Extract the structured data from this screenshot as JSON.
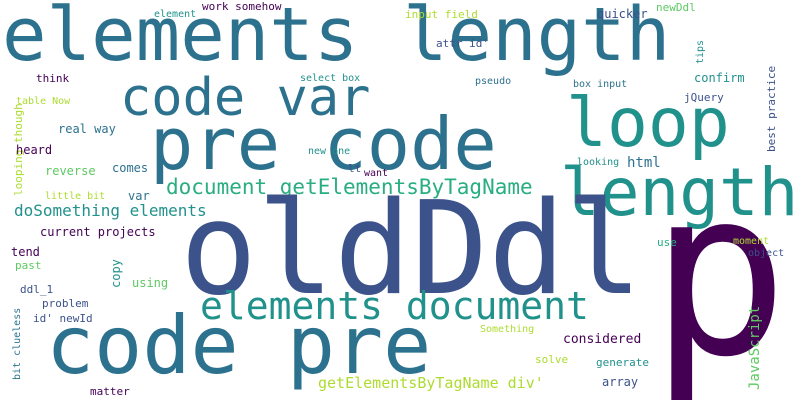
{
  "colors": {
    "background": "#ffffff",
    "palette": [
      "#440154",
      "#3b528b",
      "#2c728e",
      "#21918c",
      "#28ae80",
      "#5ec962",
      "#addc30",
      "#fde725"
    ]
  },
  "words": [
    {
      "text": "elements length",
      "color": "#2c728e",
      "orientation": "horizontal"
    },
    {
      "text": "code var",
      "color": "#2c728e",
      "orientation": "horizontal"
    },
    {
      "text": "pre code",
      "color": "#2c728e",
      "orientation": "horizontal"
    },
    {
      "text": "loop",
      "color": "#21918c",
      "orientation": "horizontal"
    },
    {
      "text": "length",
      "color": "#21918c",
      "orientation": "horizontal"
    },
    {
      "text": "document getElementsByTagName",
      "color": "#28ae80",
      "orientation": "horizontal"
    },
    {
      "text": "doSomething elements",
      "color": "#21918c",
      "orientation": "horizontal"
    },
    {
      "text": "oldDdl",
      "color": "#3b528b",
      "orientation": "horizontal"
    },
    {
      "text": "p",
      "color": "#440154",
      "orientation": "horizontal"
    },
    {
      "text": "elements document",
      "color": "#21918c",
      "orientation": "horizontal"
    },
    {
      "text": "code pre",
      "color": "#2c728e",
      "orientation": "horizontal"
    },
    {
      "text": "getElementsByTagName div'",
      "color": "#addc30",
      "orientation": "horizontal"
    },
    {
      "text": "element",
      "color": "#21918c",
      "orientation": "horizontal"
    },
    {
      "text": "work somehow",
      "color": "#440154",
      "orientation": "horizontal"
    },
    {
      "text": "input field",
      "color": "#addc30",
      "orientation": "horizontal"
    },
    {
      "text": "newDdl",
      "color": "#5ec962",
      "orientation": "horizontal"
    },
    {
      "text": "quicker",
      "color": "#3b528b",
      "orientation": "horizontal"
    },
    {
      "text": "attr id'",
      "color": "#3b528b",
      "orientation": "horizontal"
    },
    {
      "text": "tips",
      "color": "#21918c",
      "orientation": "vertical"
    },
    {
      "text": "best practice",
      "color": "#3b528b",
      "orientation": "vertical"
    },
    {
      "text": "think",
      "color": "#440154",
      "orientation": "horizontal"
    },
    {
      "text": "select box",
      "color": "#21918c",
      "orientation": "horizontal"
    },
    {
      "text": "pseudo",
      "color": "#2c728e",
      "orientation": "horizontal"
    },
    {
      "text": "box input",
      "color": "#2c728e",
      "orientation": "horizontal"
    },
    {
      "text": "confirm",
      "color": "#21918c",
      "orientation": "horizontal"
    },
    {
      "text": "jQuery",
      "color": "#3b528b",
      "orientation": "horizontal"
    },
    {
      "text": "table Now",
      "color": "#addc30",
      "orientation": "horizontal"
    },
    {
      "text": "looping though",
      "color": "#addc30",
      "orientation": "vertical"
    },
    {
      "text": "real way",
      "color": "#2c728e",
      "orientation": "horizontal"
    },
    {
      "text": "heard",
      "color": "#440154",
      "orientation": "horizontal"
    },
    {
      "text": "new one",
      "color": "#21918c",
      "orientation": "horizontal"
    },
    {
      "text": "html",
      "color": "#2c728e",
      "orientation": "horizontal"
    },
    {
      "text": "looking",
      "color": "#21918c",
      "orientation": "horizontal"
    },
    {
      "text": "comes",
      "color": "#2c728e",
      "orientation": "horizontal"
    },
    {
      "text": "lt",
      "color": "#3b528b",
      "orientation": "horizontal"
    },
    {
      "text": "want",
      "color": "#440154",
      "orientation": "horizontal"
    },
    {
      "text": "reverse",
      "color": "#5ec962",
      "orientation": "horizontal"
    },
    {
      "text": "little bit",
      "color": "#addc30",
      "orientation": "horizontal"
    },
    {
      "text": "var",
      "color": "#2c728e",
      "orientation": "horizontal"
    },
    {
      "text": "current projects",
      "color": "#440154",
      "orientation": "horizontal"
    },
    {
      "text": "tend",
      "color": "#440154",
      "orientation": "horizontal"
    },
    {
      "text": "past",
      "color": "#5ec962",
      "orientation": "horizontal"
    },
    {
      "text": "copy",
      "color": "#21918c",
      "orientation": "vertical"
    },
    {
      "text": "use",
      "color": "#28ae80",
      "orientation": "horizontal"
    },
    {
      "text": "moment",
      "color": "#addc30",
      "orientation": "horizontal"
    },
    {
      "text": "object",
      "color": "#3b528b",
      "orientation": "horizontal"
    },
    {
      "text": "using",
      "color": "#5ec962",
      "orientation": "horizontal"
    },
    {
      "text": "ddl_1",
      "color": "#3b528b",
      "orientation": "horizontal"
    },
    {
      "text": "problem",
      "color": "#3b528b",
      "orientation": "horizontal"
    },
    {
      "text": "id' newId",
      "color": "#3b528b",
      "orientation": "horizontal"
    },
    {
      "text": "bit clueless",
      "color": "#2c728e",
      "orientation": "vertical"
    },
    {
      "text": "Something",
      "color": "#addc30",
      "orientation": "horizontal"
    },
    {
      "text": "JavaScript",
      "color": "#5ec962",
      "orientation": "vertical"
    },
    {
      "text": "considered",
      "color": "#440154",
      "orientation": "horizontal"
    },
    {
      "text": "solve",
      "color": "#addc30",
      "orientation": "horizontal"
    },
    {
      "text": "generate",
      "color": "#21918c",
      "orientation": "horizontal"
    },
    {
      "text": "array",
      "color": "#3b528b",
      "orientation": "horizontal"
    },
    {
      "text": "matter",
      "color": "#440154",
      "orientation": "horizontal"
    }
  ]
}
